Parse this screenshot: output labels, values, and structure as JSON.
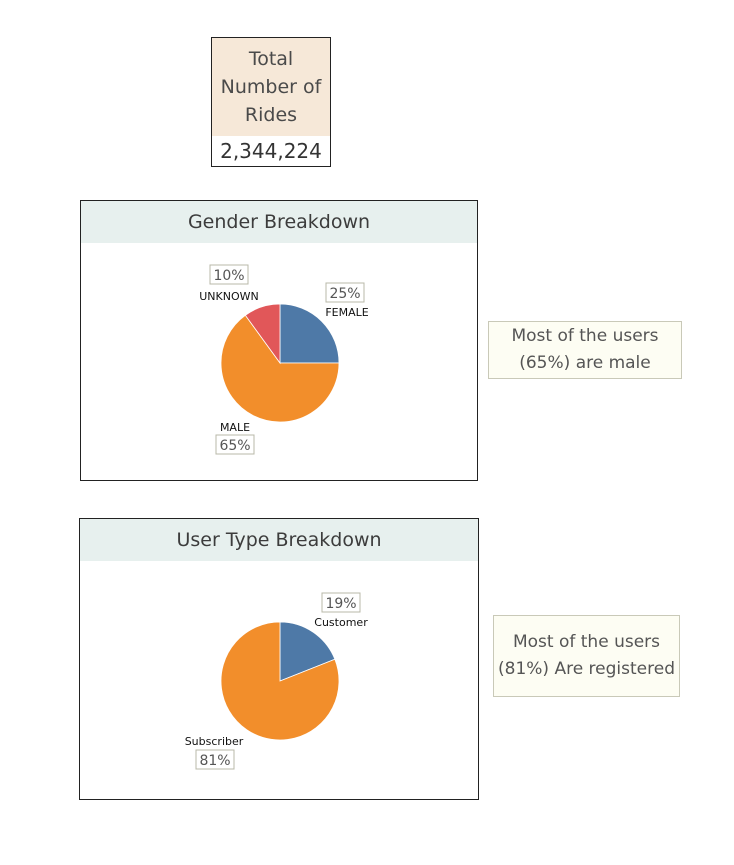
{
  "kpi": {
    "title": "Total Number of Rides",
    "value": "2,344,224"
  },
  "colors": {
    "blue": "#4e79a7",
    "orange": "#f28e2b",
    "red": "#e15759"
  },
  "chart_data": [
    {
      "type": "pie",
      "title": "Gender Breakdown",
      "slices": [
        {
          "label": "FEMALE",
          "value": 25,
          "pct_label": "25%",
          "color": "#4e79a7"
        },
        {
          "label": "MALE",
          "value": 65,
          "pct_label": "65%",
          "color": "#f28e2b"
        },
        {
          "label": "UNKNOWN",
          "value": 10,
          "pct_label": "10%",
          "color": "#e15759"
        }
      ]
    },
    {
      "type": "pie",
      "title": "User Type Breakdown",
      "slices": [
        {
          "label": "Customer",
          "value": 19,
          "pct_label": "19%",
          "color": "#4e79a7"
        },
        {
          "label": "Subscriber",
          "value": 81,
          "pct_label": "81%",
          "color": "#f28e2b"
        }
      ]
    }
  ],
  "notes": {
    "gender": "Most of the users (65%) are male",
    "usertype": "Most of the users (81%) Are registered"
  }
}
